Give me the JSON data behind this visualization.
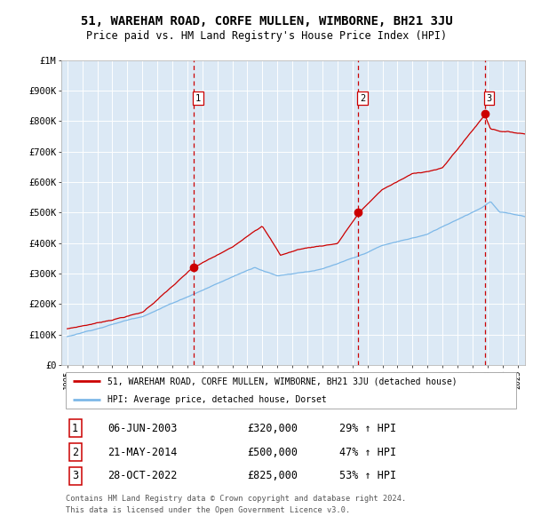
{
  "title": "51, WAREHAM ROAD, CORFE MULLEN, WIMBORNE, BH21 3JU",
  "subtitle": "Price paid vs. HM Land Registry's House Price Index (HPI)",
  "title_fontsize": 10,
  "subtitle_fontsize": 8.5,
  "background_color": "#ffffff",
  "plot_bg_color": "#dce9f5",
  "grid_color": "#ffffff",
  "ylim": [
    0,
    1000000
  ],
  "yticks": [
    0,
    100000,
    200000,
    300000,
    400000,
    500000,
    600000,
    700000,
    800000,
    900000,
    1000000
  ],
  "ytick_labels": [
    "£0",
    "£100K",
    "£200K",
    "£300K",
    "£400K",
    "£500K",
    "£600K",
    "£700K",
    "£800K",
    "£900K",
    "£1M"
  ],
  "red_line_color": "#cc0000",
  "blue_line_color": "#7db8e8",
  "sale_points": [
    {
      "label": "1",
      "date": 2003.43,
      "price": 320000
    },
    {
      "label": "2",
      "date": 2014.39,
      "price": 500000
    },
    {
      "label": "3",
      "date": 2022.83,
      "price": 825000
    }
  ],
  "vline_color": "#cc0000",
  "legend_line1": "51, WAREHAM ROAD, CORFE MULLEN, WIMBORNE, BH21 3JU (detached house)",
  "legend_line2": "HPI: Average price, detached house, Dorset",
  "table_data": [
    {
      "num": "1",
      "date": "06-JUN-2003",
      "price": "£320,000",
      "hpi": "29% ↑ HPI"
    },
    {
      "num": "2",
      "date": "21-MAY-2014",
      "price": "£500,000",
      "hpi": "47% ↑ HPI"
    },
    {
      "num": "3",
      "date": "28-OCT-2022",
      "price": "£825,000",
      "hpi": "53% ↑ HPI"
    }
  ],
  "footnote1": "Contains HM Land Registry data © Crown copyright and database right 2024.",
  "footnote2": "This data is licensed under the Open Government Licence v3.0."
}
